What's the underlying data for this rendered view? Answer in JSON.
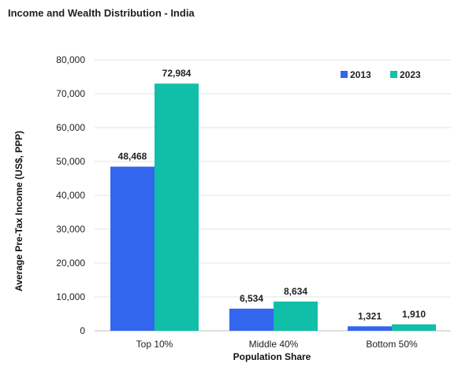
{
  "chart_data": {
    "type": "bar",
    "title": "Income and Wealth Distribution - India",
    "xlabel": "Population Share",
    "ylabel": "Average Pre-Tax Income (US$, PPP)",
    "categories": [
      "Top 10%",
      "Middle 40%",
      "Bottom 50%"
    ],
    "series": [
      {
        "name": "2013",
        "values": [
          48468,
          6534,
          1321
        ],
        "labels": [
          "48,468",
          "6,534",
          "1,321"
        ],
        "color": "#3366ee"
      },
      {
        "name": "2023",
        "values": [
          72984,
          8634,
          1910
        ],
        "labels": [
          "72,984",
          "8,634",
          "1,910"
        ],
        "color": "#11bfa8"
      }
    ],
    "ylim": [
      0,
      80000
    ],
    "yticks": [
      0,
      10000,
      20000,
      30000,
      40000,
      50000,
      60000,
      70000,
      80000
    ],
    "ytick_labels": [
      "0",
      "10,000",
      "20,000",
      "30,000",
      "40,000",
      "50,000",
      "60,000",
      "70,000",
      "80,000"
    ],
    "grid": true,
    "legend_position": "top-right"
  }
}
